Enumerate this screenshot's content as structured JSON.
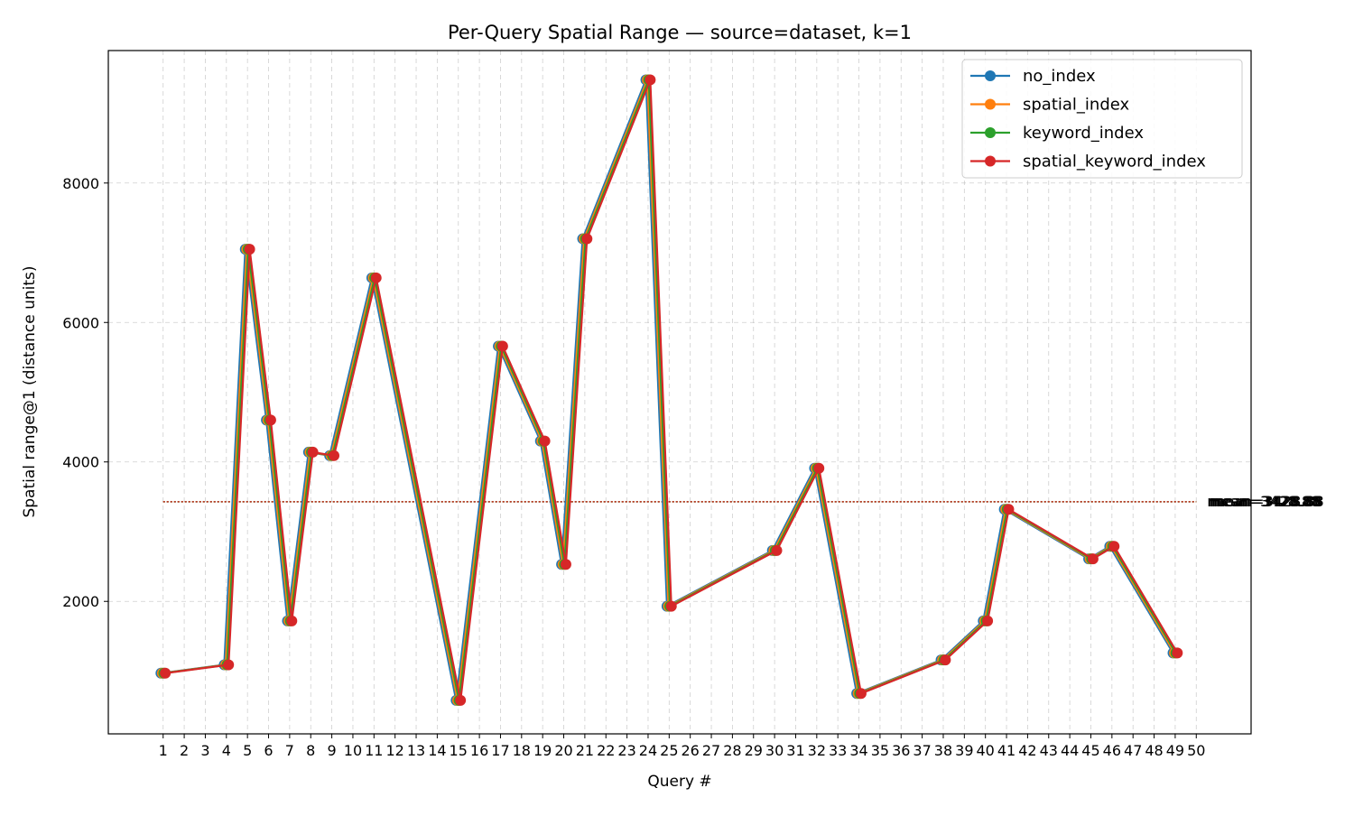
{
  "chart_data": {
    "type": "line",
    "title": "Per-Query Spatial Range — source=dataset, k=1",
    "xlabel": "Query #",
    "ylabel": "Spatial range@1 (distance units)",
    "xlim": [
      -1.6,
      52.6
    ],
    "ylim": [
      100,
      9900
    ],
    "x_ticks": [
      1,
      2,
      3,
      4,
      5,
      6,
      7,
      8,
      9,
      10,
      11,
      12,
      13,
      14,
      15,
      16,
      17,
      18,
      19,
      20,
      21,
      22,
      23,
      24,
      25,
      26,
      27,
      28,
      29,
      30,
      31,
      32,
      33,
      34,
      35,
      36,
      37,
      38,
      39,
      40,
      41,
      42,
      43,
      44,
      45,
      46,
      47,
      48,
      49,
      50
    ],
    "y_ticks": [
      2000,
      4000,
      6000,
      8000
    ],
    "grid": true,
    "legend_position": "top-right",
    "x": [
      1,
      4,
      5,
      6,
      7,
      8,
      9,
      11,
      15,
      17,
      19,
      20,
      21,
      24,
      25,
      30,
      32,
      34,
      38,
      40,
      41,
      45,
      46,
      49
    ],
    "series": [
      {
        "name": "no_index",
        "color": "#1f77b4",
        "mean": 3428.88,
        "mean_label": "mean=3428.88",
        "values": [
          970,
          1090,
          7050,
          4600,
          1720,
          4140,
          4090,
          6640,
          580,
          5660,
          4300,
          2530,
          7200,
          9480,
          1930,
          2730,
          3910,
          680,
          1160,
          1720,
          3320,
          2610,
          2790,
          1260
        ]
      },
      {
        "name": "spatial_index",
        "color": "#ff7f0e",
        "mean": 3428.88,
        "mean_label": "mean=3428.88",
        "values": [
          970,
          1090,
          7050,
          4600,
          1720,
          4140,
          4090,
          6640,
          580,
          5660,
          4300,
          2530,
          7200,
          9480,
          1930,
          2730,
          3910,
          680,
          1160,
          1720,
          3320,
          2610,
          2790,
          1260
        ]
      },
      {
        "name": "keyword_index",
        "color": "#2ca02c",
        "mean": 3428.88,
        "mean_label": "mean=3428.88",
        "values": [
          970,
          1090,
          7050,
          4600,
          1720,
          4140,
          4090,
          6640,
          580,
          5660,
          4300,
          2530,
          7200,
          9480,
          1930,
          2730,
          3910,
          680,
          1160,
          1720,
          3320,
          2610,
          2790,
          1260
        ]
      },
      {
        "name": "spatial_keyword_index",
        "color": "#d62728",
        "mean": 3428.88,
        "mean_label": "mean=3428.88",
        "values": [
          970,
          1090,
          7050,
          4600,
          1720,
          4140,
          4090,
          6640,
          580,
          5660,
          4300,
          2530,
          7200,
          9480,
          1930,
          2730,
          3910,
          680,
          1160,
          1720,
          3320,
          2610,
          2790,
          1260
        ]
      }
    ]
  }
}
